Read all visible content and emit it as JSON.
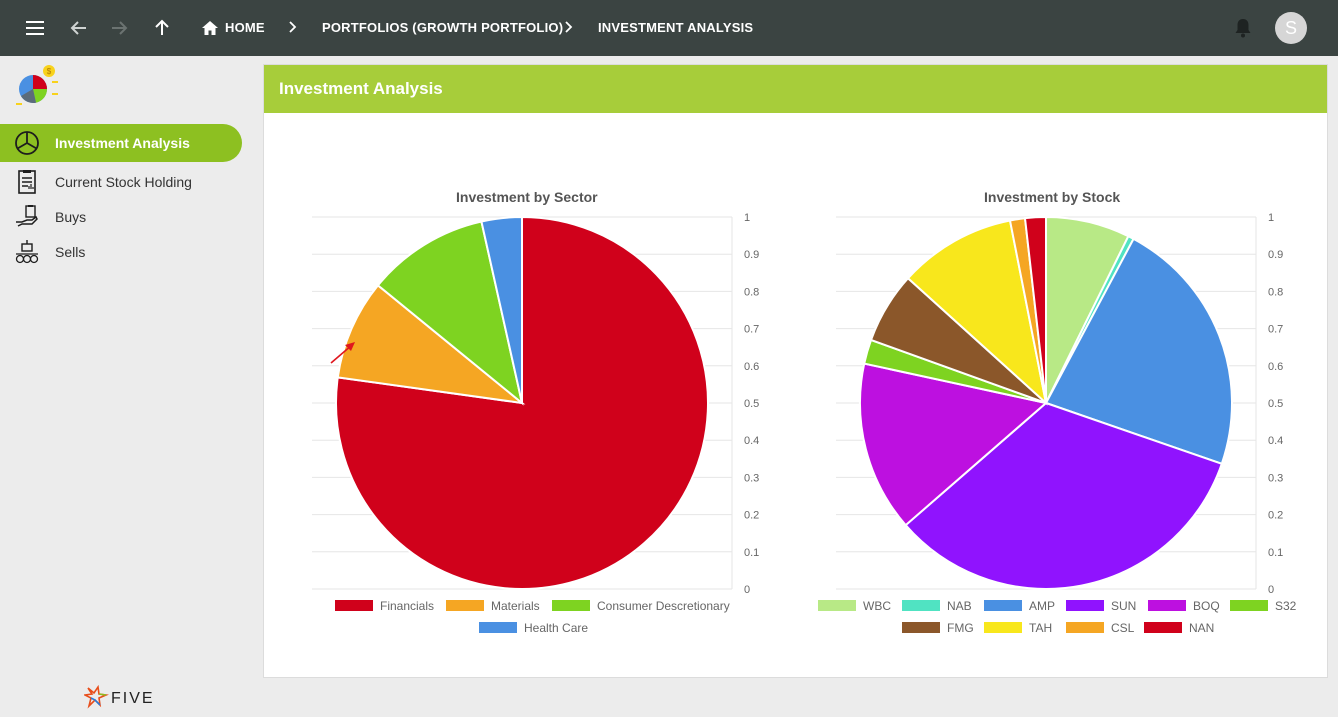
{
  "topbar": {
    "breadcrumbs": [
      {
        "label": "HOME"
      },
      {
        "label": "PORTFOLIOS (GROWTH PORTFOLIO)"
      },
      {
        "label": "INVESTMENT ANALYSIS"
      }
    ],
    "avatar_initial": "S"
  },
  "sidebar": {
    "items": [
      {
        "label": "Investment Analysis",
        "icon": "pie-chart-icon",
        "active": true
      },
      {
        "label": "Current Stock Holding",
        "icon": "document-chart-icon",
        "active": false
      },
      {
        "label": "Buys",
        "icon": "hand-money-icon",
        "active": false
      },
      {
        "label": "Sells",
        "icon": "money-stack-icon",
        "active": false
      }
    ],
    "footer_brand": "FIVE"
  },
  "panel": {
    "title": "Investment Analysis"
  },
  "colors": {
    "topbar": "#3b4442",
    "accent": "#8dc021",
    "panel_header": "#a7cd3a"
  },
  "chart_data": [
    {
      "type": "pie",
      "title": "Investment by Sector",
      "categories": [
        "Financials",
        "Materials",
        "Consumer Descretionary",
        "Health Care"
      ],
      "values": [
        0.772,
        0.087,
        0.106,
        0.035
      ],
      "colors": [
        "#d0011b",
        "#f5a623",
        "#7ed321",
        "#4a90e2"
      ],
      "y_ticks": [
        "1",
        "0.9",
        "0.8",
        "0.7",
        "0.6",
        "0.5",
        "0.4",
        "0.3",
        "0.2",
        "0.1",
        "0"
      ],
      "ylim": [
        0,
        1
      ],
      "grid": true,
      "legend": "bottom"
    },
    {
      "type": "pie",
      "title": "Investment by Stock",
      "categories": [
        "WBC",
        "NAB",
        "AMP",
        "SUN",
        "BOQ",
        "S32",
        "FMG",
        "TAH",
        "CSL",
        "NAN"
      ],
      "values": [
        0.073,
        0.005,
        0.225,
        0.333,
        0.148,
        0.021,
        0.062,
        0.102,
        0.013,
        0.018
      ],
      "colors": [
        "#b8e986",
        "#50e3c2",
        "#4a90e2",
        "#9013fe",
        "#bd10e0",
        "#7ed321",
        "#8b572a",
        "#f8e71c",
        "#f5a623",
        "#d0011b"
      ],
      "y_ticks": [
        "1",
        "0.9",
        "0.8",
        "0.7",
        "0.6",
        "0.5",
        "0.4",
        "0.3",
        "0.2",
        "0.1",
        "0"
      ],
      "ylim": [
        0,
        1
      ],
      "grid": true,
      "legend": "bottom"
    }
  ]
}
